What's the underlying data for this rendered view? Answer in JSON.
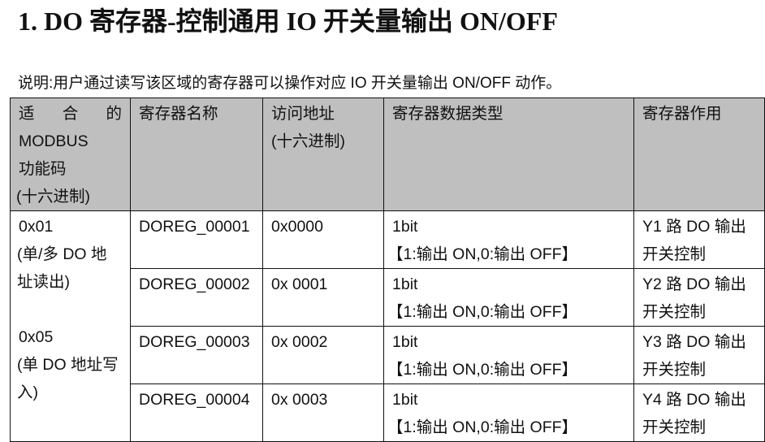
{
  "title": "1. DO 寄存器-控制通用 IO 开关量输出 ON/OFF",
  "description": "说明:用户通过读写该区域的寄存器可以操作对应 IO 开关量输出 ON/OFF 动作。",
  "table": {
    "headers": {
      "func_code": [
        "适",
        "合",
        "的",
        "MODBUS",
        "功能码",
        "(十六进制)"
      ],
      "name": "寄存器名称",
      "address": [
        "访问地址",
        "(十六进制)"
      ],
      "type": "寄存器数据类型",
      "purpose": "寄存器作用"
    },
    "func_groups": [
      {
        "code": "0x01",
        "desc": "(单/多 DO 地址读出)"
      },
      {
        "code": "0x05",
        "desc": "(单 DO 地址写入)"
      }
    ],
    "rows": [
      {
        "name": "DOREG_00001",
        "address": "0x0000",
        "type": "1bit",
        "type_note": "【1:输出 ON,0:输出 OFF】",
        "purpose": "Y1 路 DO 输出开关控制"
      },
      {
        "name": "DOREG_00002",
        "address": "0x 0001",
        "type": "1bit",
        "type_note": "【1:输出 ON,0:输出 OFF】",
        "purpose": "Y2 路 DO 输出开关控制"
      },
      {
        "name": "DOREG_00003",
        "address": "0x 0002",
        "type": "1bit",
        "type_note": "【1:输出 ON,0:输出 OFF】",
        "purpose": "Y3 路 DO 输出开关控制"
      },
      {
        "name": "DOREG_00004",
        "address": "0x 0003",
        "type": "1bit",
        "type_note": "【1:输出 ON,0:输出 OFF】",
        "purpose": "Y4 路 DO 输出开关控制"
      }
    ]
  },
  "colors": {
    "header_bg": "#bfbfbf",
    "border": "#111111"
  }
}
